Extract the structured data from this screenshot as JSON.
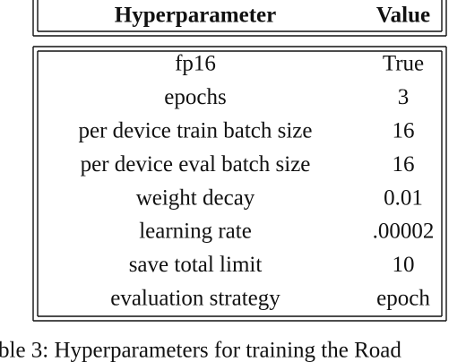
{
  "table": {
    "header": [
      "Hyperparameter",
      "Value"
    ],
    "rows": [
      [
        "fp16",
        "True"
      ],
      [
        "epochs",
        "3"
      ],
      [
        "per device train batch size",
        "16"
      ],
      [
        "per device eval batch size",
        "16"
      ],
      [
        "weight decay",
        "0.01"
      ],
      [
        "learning rate",
        ".00002"
      ],
      [
        "save total limit",
        "10"
      ],
      [
        "evaluation strategy",
        "epoch"
      ]
    ]
  },
  "caption": "ble 3: Hyperparameters for training the Road"
}
